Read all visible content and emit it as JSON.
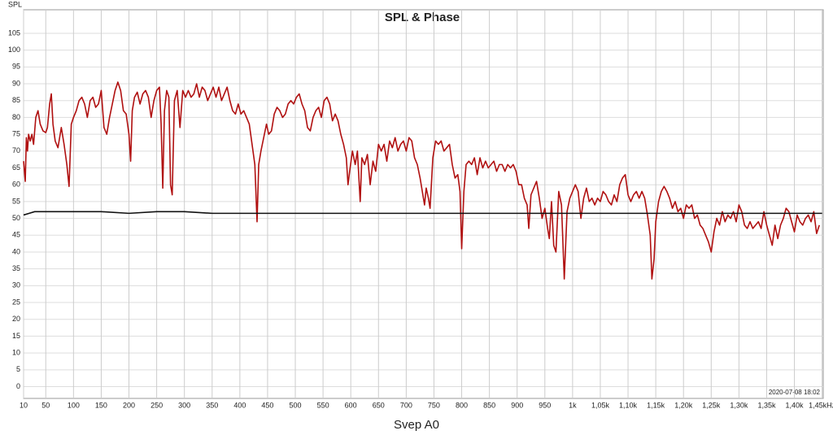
{
  "chart_data": {
    "type": "line",
    "title": "SPL & Phase",
    "y_label": "SPL",
    "x_label": "Svep A0",
    "timestamp": "2020-07-08 18:02",
    "xlim": [
      10,
      1452
    ],
    "ylim": [
      -3.5,
      112
    ],
    "grid": true,
    "yticks": [
      0,
      5,
      10,
      15,
      20,
      25,
      30,
      35,
      40,
      45,
      50,
      55,
      60,
      65,
      70,
      75,
      80,
      85,
      90,
      95,
      100,
      105
    ],
    "xticks": [
      10,
      50,
      100,
      150,
      200,
      250,
      300,
      350,
      400,
      450,
      500,
      550,
      600,
      650,
      700,
      750,
      800,
      850,
      900,
      950,
      {
        "value": 1000,
        "label": "1k"
      },
      {
        "value": 1050,
        "label": "1,05k"
      },
      {
        "value": 1100,
        "label": "1,10k"
      },
      {
        "value": 1150,
        "label": "1,15k"
      },
      {
        "value": 1200,
        "label": "1,20k"
      },
      {
        "value": 1250,
        "label": "1,25k"
      },
      {
        "value": 1300,
        "label": "1,30k"
      },
      {
        "value": 1350,
        "label": "1,35k"
      },
      {
        "value": 1400,
        "label": "1,40k"
      },
      {
        "value": 1450,
        "label": "1,45kHz"
      }
    ],
    "series": [
      {
        "color": "#b01010",
        "x": [
          10,
          13,
          15,
          17,
          19,
          22,
          25,
          28,
          32,
          36,
          40,
          45,
          50,
          53,
          57,
          60,
          63,
          67,
          72,
          78,
          83,
          88,
          92,
          96,
          100,
          105,
          110,
          115,
          120,
          125,
          130,
          135,
          140,
          145,
          150,
          155,
          160,
          165,
          170,
          175,
          180,
          185,
          190,
          195,
          200,
          203,
          206,
          210,
          215,
          220,
          225,
          230,
          235,
          240,
          245,
          250,
          255,
          258,
          261,
          264,
          268,
          272,
          275,
          278,
          282,
          287,
          292,
          297,
          302,
          307,
          312,
          317,
          322,
          327,
          332,
          337,
          342,
          347,
          352,
          357,
          362,
          367,
          372,
          377,
          382,
          387,
          392,
          397,
          402,
          407,
          412,
          417,
          422,
          427,
          431,
          434,
          438,
          443,
          448,
          452,
          457,
          462,
          467,
          472,
          477,
          482,
          487,
          492,
          497,
          502,
          507,
          512,
          517,
          522,
          527,
          532,
          537,
          542,
          547,
          552,
          557,
          562,
          567,
          572,
          577,
          582,
          587,
          592,
          595,
          598,
          603,
          608,
          612,
          617,
          620,
          625,
          630,
          635,
          640,
          645,
          650,
          655,
          660,
          665,
          670,
          675,
          680,
          685,
          690,
          695,
          700,
          705,
          710,
          715,
          720,
          725,
          730,
          733,
          736,
          740,
          743,
          748,
          753,
          758,
          763,
          768,
          773,
          778,
          783,
          788,
          793,
          797,
          800,
          804,
          808,
          813,
          818,
          823,
          828,
          833,
          838,
          843,
          848,
          853,
          858,
          863,
          868,
          873,
          878,
          883,
          888,
          893,
          898,
          903,
          908,
          913,
          918,
          921,
          925,
          930,
          935,
          940,
          945,
          950,
          955,
          958,
          962,
          966,
          970,
          975,
          980,
          985,
          990,
          995,
          1000,
          1005,
          1010,
          1015,
          1020,
          1025,
          1030,
          1035,
          1040,
          1045,
          1050,
          1055,
          1060,
          1065,
          1070,
          1075,
          1080,
          1085,
          1090,
          1095,
          1100,
          1105,
          1110,
          1115,
          1120,
          1125,
          1130,
          1135,
          1140,
          1143,
          1147,
          1150,
          1155,
          1160,
          1165,
          1170,
          1175,
          1180,
          1185,
          1190,
          1195,
          1200,
          1205,
          1210,
          1215,
          1220,
          1225,
          1230,
          1235,
          1240,
          1245,
          1250,
          1255,
          1260,
          1265,
          1270,
          1275,
          1280,
          1285,
          1290,
          1295,
          1300,
          1305,
          1310,
          1315,
          1320,
          1325,
          1330,
          1335,
          1340,
          1345,
          1350,
          1355,
          1360,
          1365,
          1370,
          1375,
          1380,
          1385,
          1390,
          1395,
          1400,
          1405,
          1410,
          1415,
          1420,
          1425,
          1430,
          1435,
          1440,
          1445
        ],
        "values": [
          67,
          61,
          74,
          70,
          75,
          73,
          75,
          72,
          80,
          82,
          78,
          76,
          75.5,
          77,
          84,
          87,
          78,
          73,
          71,
          77,
          72,
          66,
          59.5,
          78,
          80,
          82,
          85,
          86,
          84,
          80,
          85,
          86,
          83,
          84,
          88,
          77,
          75,
          80,
          84,
          88,
          90.5,
          88,
          82,
          81,
          75,
          67,
          82,
          86,
          87.5,
          84,
          87,
          88,
          86,
          80,
          85,
          88,
          89,
          78,
          59,
          82,
          88,
          86,
          60,
          57,
          85,
          88,
          77,
          88,
          86,
          88,
          86,
          87,
          90,
          86,
          89,
          88,
          85,
          87,
          89,
          86,
          89,
          85,
          87,
          89,
          85,
          82,
          81,
          84,
          81,
          82,
          80,
          78,
          72,
          66,
          49,
          66,
          70,
          74,
          78,
          75,
          76,
          81,
          83,
          82,
          80,
          81,
          84,
          85,
          84,
          86,
          87,
          84,
          82,
          77,
          76,
          80,
          82,
          83,
          80,
          85,
          86,
          84,
          79,
          81,
          79,
          75,
          72,
          68,
          60,
          64,
          70,
          66,
          70,
          55,
          68,
          66,
          69,
          60,
          67,
          64,
          72,
          70,
          72,
          67,
          73,
          71,
          74,
          70,
          72,
          73,
          70,
          74,
          73,
          68,
          66,
          62,
          57,
          54,
          59,
          56,
          53,
          68,
          73,
          72,
          73,
          70,
          71,
          72,
          66,
          62,
          63,
          58,
          41,
          58,
          66,
          67,
          66,
          68,
          63,
          68,
          65,
          67,
          65,
          66,
          67,
          64,
          66,
          66,
          64,
          66,
          65,
          66,
          64,
          60,
          60,
          56,
          54,
          47,
          57,
          59,
          61,
          56,
          50,
          53,
          47,
          44,
          55,
          42,
          40,
          58,
          54,
          32,
          52,
          56,
          58,
          60,
          58,
          50,
          56,
          59,
          55,
          56,
          54,
          56,
          55,
          58,
          57,
          55,
          54,
          57,
          55,
          60,
          62,
          63,
          57,
          55,
          57,
          58,
          56,
          58,
          56,
          51,
          45,
          32,
          38,
          49,
          55,
          58,
          59.5,
          58,
          56,
          53,
          55,
          52,
          53,
          50,
          54,
          53,
          54,
          50,
          51,
          48,
          47,
          45,
          43,
          40,
          46,
          50,
          48,
          52,
          49,
          51,
          50,
          52,
          49,
          54,
          52,
          48,
          47,
          49,
          47,
          48,
          49,
          47,
          52,
          48,
          45,
          42,
          48,
          44,
          48,
          50,
          53,
          52,
          49,
          46,
          51,
          49,
          48,
          50,
          51,
          49,
          52,
          45.5,
          48
        ]
      },
      {
        "color": "#111111",
        "x": [
          10,
          20,
          30,
          50,
          100,
          150,
          200,
          250,
          300,
          350,
          400,
          1450
        ],
        "values": [
          51,
          51.5,
          52,
          52,
          52,
          52,
          51.5,
          52,
          52,
          51.5,
          51.5,
          51.5
        ]
      }
    ]
  }
}
